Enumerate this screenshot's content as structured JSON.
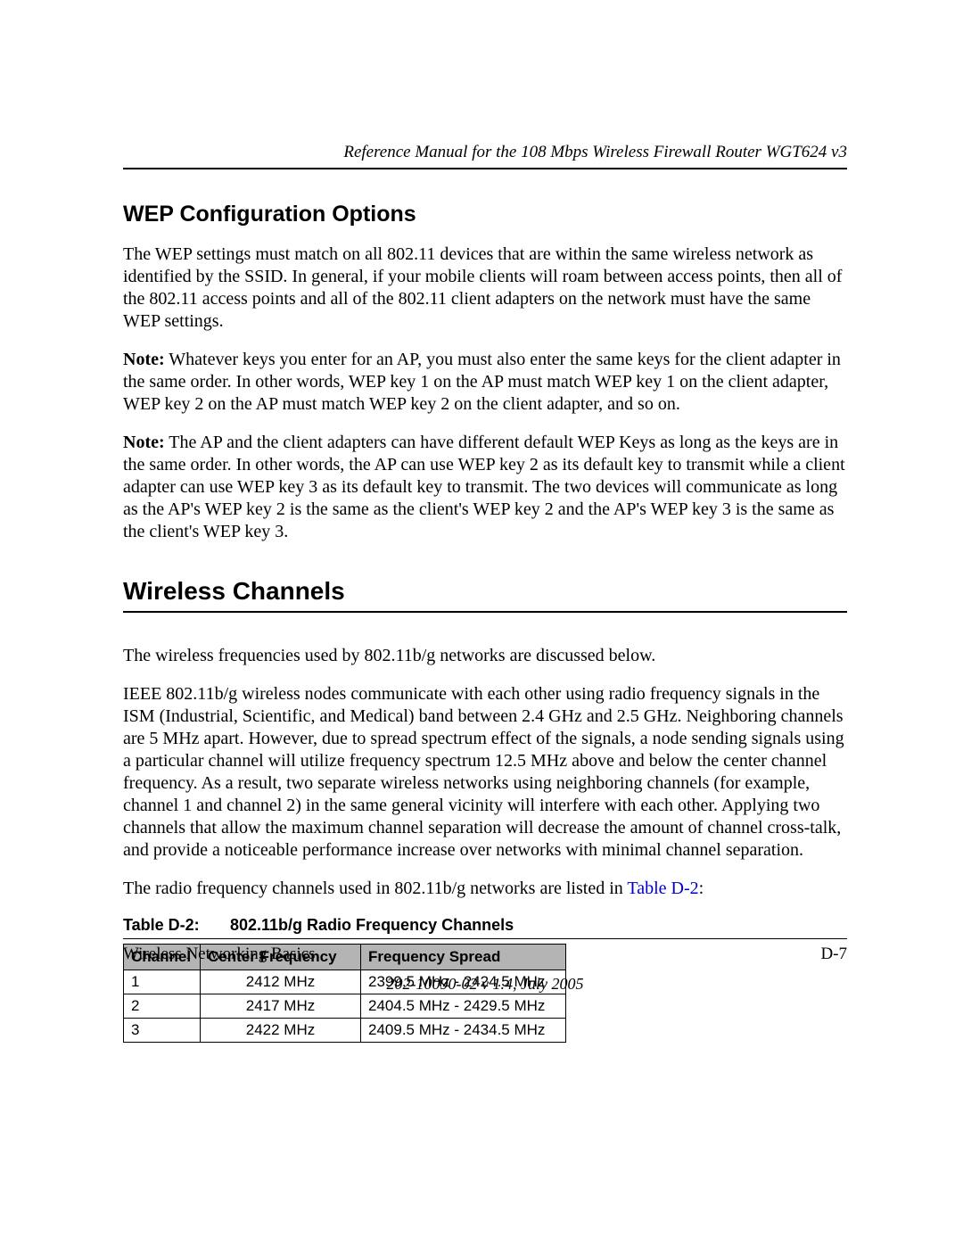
{
  "header": {
    "running_title": "Reference Manual for the 108 Mbps Wireless Firewall Router WGT624 v3"
  },
  "sections": {
    "wep": {
      "title": "WEP Configuration Options",
      "p1": "The WEP settings must match on all 802.11 devices that are within the same wireless network as identified by the SSID. In general, if your mobile clients will roam between access points, then all of the 802.11 access points and all of the 802.11 client adapters on the network must have the same WEP settings.",
      "note1_label": "Note:",
      "note1_text": " Whatever keys you enter for an AP, you must also enter the same keys for the client adapter in the same order. In other words, WEP key 1 on the AP must match WEP key 1 on the client adapter, WEP key 2 on the AP must match WEP key 2 on the client adapter, and so on.",
      "note2_label": "Note:",
      "note2_text": " The AP and the client adapters can have different default WEP Keys as long as the keys are in the same order. In other words, the AP can use WEP key 2 as its default key to transmit while a client adapter can use WEP key 3 as its default key to transmit. The two devices will communicate as long as the AP's WEP key 2 is the same as the client's WEP key 2 and the AP's WEP key 3 is the same as the client's WEP key 3."
    },
    "channels": {
      "title": "Wireless Channels",
      "p1": "The wireless frequencies used by 802.11b/g networks are discussed below.",
      "p2": "IEEE 802.11b/g wireless nodes communicate with each other using radio frequency signals in the ISM (Industrial, Scientific, and Medical) band between 2.4 GHz and 2.5 GHz. Neighboring channels are 5 MHz apart. However, due to spread spectrum effect of the signals, a node sending signals using a particular channel will utilize frequency spectrum 12.5 MHz above and below the center channel frequency. As a result, two separate wireless networks using neighboring channels (for example, channel 1 and channel 2) in the same general vicinity will interfere with each other. Applying two channels that allow the maximum channel separation will decrease the amount of channel cross-talk, and provide a noticeable performance increase over networks with minimal channel separation.",
      "p3_pre": "The radio frequency channels used in 802.11b/g networks are listed in ",
      "p3_link": "Table D-2",
      "p3_post": ":"
    }
  },
  "table": {
    "caption_label": "Table D-2:",
    "caption_title": "802.11b/g Radio Frequency Channels",
    "columns": [
      "Channel",
      "Center Frequency",
      "Frequency Spread"
    ],
    "rows": [
      {
        "channel": "1",
        "center": "2412 MHz",
        "spread": "2399.5 MHz - 2424.5 MHz"
      },
      {
        "channel": "2",
        "center": "2417 MHz",
        "spread": "2404.5 MHz - 2429.5 MHz"
      },
      {
        "channel": "3",
        "center": "2422 MHz",
        "spread": "2409.5 MHz - 2434.5 MHz"
      }
    ],
    "header_bg": "#b4b4b4",
    "border_color": "#000000"
  },
  "footer": {
    "section_name": "Wireless Networking Basics",
    "page_number": "D-7",
    "doc_id": "202-10090-02 v 1.4, July 2005"
  }
}
